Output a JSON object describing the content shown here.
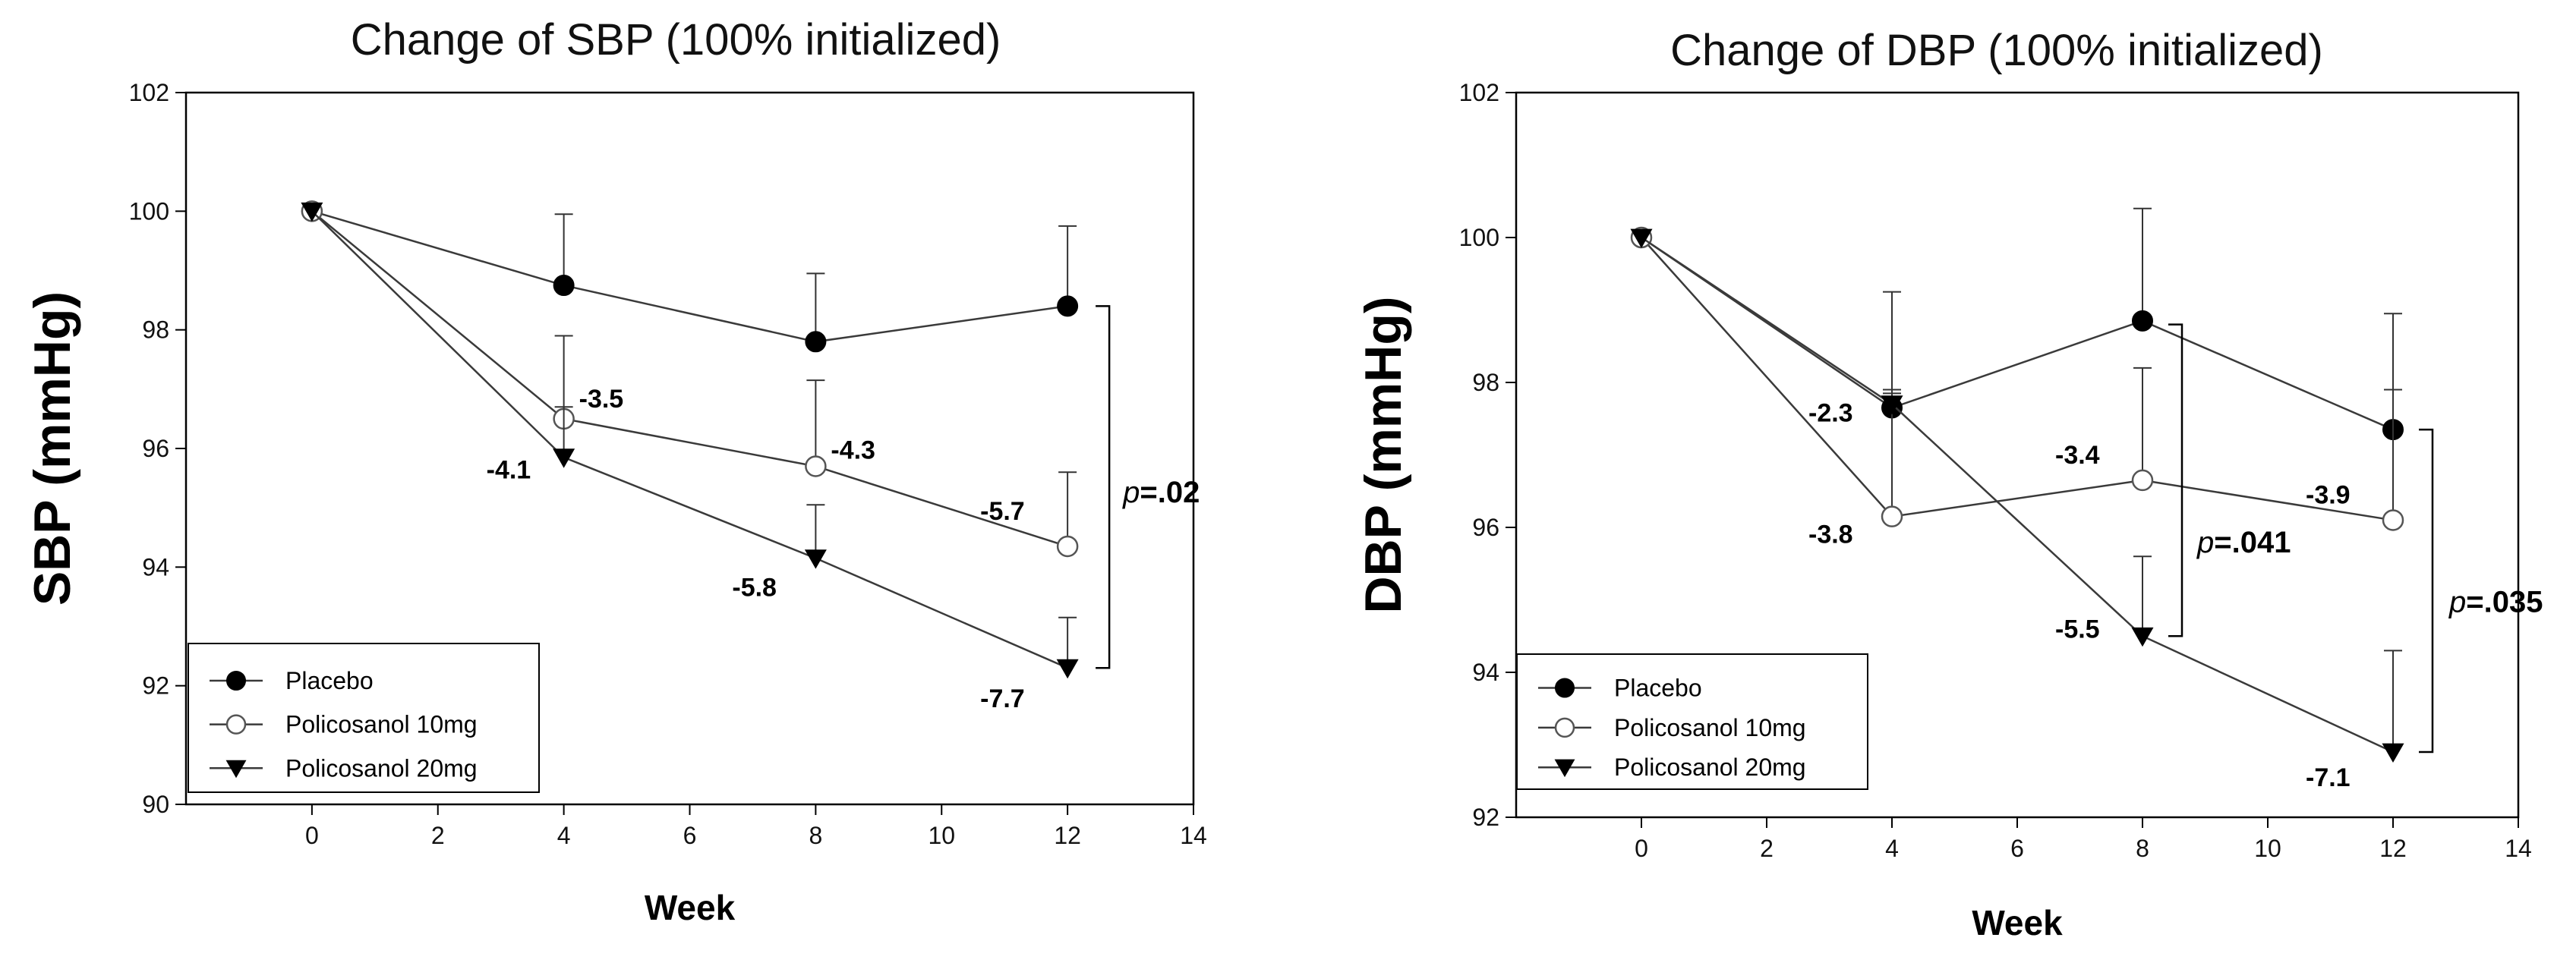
{
  "chart_data": [
    {
      "type": "line",
      "title": "Change of SBP (100% initialized)",
      "xlabel": "Week",
      "ylabel": "SBP (mmHg)",
      "xlim": [
        -2,
        14
      ],
      "ylim": [
        90,
        102
      ],
      "xticks": [
        0,
        2,
        4,
        6,
        8,
        10,
        12,
        14
      ],
      "yticks": [
        90,
        92,
        94,
        96,
        98,
        100,
        102
      ],
      "x": [
        0,
        4,
        8,
        12
      ],
      "series": [
        {
          "name": "Placebo",
          "marker": "filled-circle",
          "values": [
            100,
            98.75,
            97.8,
            98.4
          ],
          "errors": [
            0,
            1.2,
            1.15,
            1.35
          ]
        },
        {
          "name": "Policosanol 10mg",
          "marker": "open-circle",
          "values": [
            100,
            96.5,
            95.7,
            94.35
          ],
          "errors": [
            0,
            1.4,
            1.45,
            1.25
          ]
        },
        {
          "name": "Policosanol 20mg",
          "marker": "filled-triangle-down",
          "values": [
            100,
            95.85,
            94.15,
            92.3
          ],
          "errors": [
            0,
            0.85,
            0.9,
            0.85
          ]
        }
      ],
      "annotations": [
        {
          "text": "-3.5",
          "series": 1,
          "point": 1,
          "anchor": "right"
        },
        {
          "text": "-4.1",
          "series": 2,
          "point": 1,
          "anchor": "left"
        },
        {
          "text": "-4.3",
          "series": 1,
          "point": 2,
          "anchor": "right"
        },
        {
          "text": "-5.8",
          "series": 2,
          "point": 2,
          "anchor": "below-left"
        },
        {
          "text": "-5.7",
          "series": 1,
          "point": 3,
          "anchor": "above-left"
        },
        {
          "text": "-7.7",
          "series": 2,
          "point": 3,
          "anchor": "below-left"
        }
      ],
      "brackets": [
        {
          "x": 12,
          "from": 98.4,
          "to": 92.3,
          "p_prefix": "p",
          "p_value": "=.02"
        }
      ],
      "legend": {
        "placement": "bottom-left",
        "entries": [
          "Placebo",
          "Policosanol 10mg",
          "Policosanol 20mg"
        ]
      },
      "grid": false
    },
    {
      "type": "line",
      "title": "Change of DBP (100% initialized)",
      "xlabel": "Week",
      "ylabel": "DBP (mmHg)",
      "xlim": [
        -2,
        14
      ],
      "ylim": [
        92,
        102
      ],
      "xticks": [
        0,
        2,
        4,
        6,
        8,
        10,
        12,
        14
      ],
      "yticks": [
        92,
        94,
        96,
        98,
        100,
        102
      ],
      "x": [
        0,
        4,
        8,
        12
      ],
      "series": [
        {
          "name": "Placebo",
          "marker": "filled-circle",
          "values": [
            100,
            97.65,
            98.85,
            97.35
          ],
          "errors": [
            0,
            1.6,
            1.55,
            1.6
          ]
        },
        {
          "name": "Policosanol 10mg",
          "marker": "open-circle",
          "values": [
            100,
            96.15,
            96.65,
            96.1
          ],
          "errors": [
            0,
            1.7,
            1.55,
            1.8
          ]
        },
        {
          "name": "Policosanol 20mg",
          "marker": "filled-triangle-down",
          "values": [
            100,
            97.7,
            94.5,
            92.9
          ],
          "errors": [
            0,
            0.2,
            1.1,
            1.4
          ]
        }
      ],
      "annotations": [
        {
          "text": "-2.3",
          "series": 0,
          "point": 1,
          "anchor": "left"
        },
        {
          "text": "-3.8",
          "series": 1,
          "point": 1,
          "anchor": "left"
        },
        {
          "text": "-3.4",
          "series": 1,
          "point": 2,
          "anchor": "above-left"
        },
        {
          "text": "-5.5",
          "series": 2,
          "point": 2,
          "anchor": "left"
        },
        {
          "text": "-3.9",
          "series": 1,
          "point": 3,
          "anchor": "above-left"
        },
        {
          "text": "-7.1",
          "series": 2,
          "point": 3,
          "anchor": "below-left"
        }
      ],
      "brackets": [
        {
          "x": 8,
          "from": 98.8,
          "to": 94.5,
          "p_prefix": "p",
          "p_value": "=.041"
        },
        {
          "x": 12,
          "from": 97.35,
          "to": 92.9,
          "p_prefix": "p",
          "p_value": "=.035"
        }
      ],
      "legend": {
        "placement": "bottom-left",
        "entries": [
          "Placebo",
          "Policosanol 10mg",
          "Policosanol 20mg"
        ]
      },
      "grid": false
    }
  ],
  "colors": {
    "line": "#3a3a3a",
    "marker_fill": "#000000",
    "open_fill": "#ffffff",
    "frame": "#000000"
  }
}
